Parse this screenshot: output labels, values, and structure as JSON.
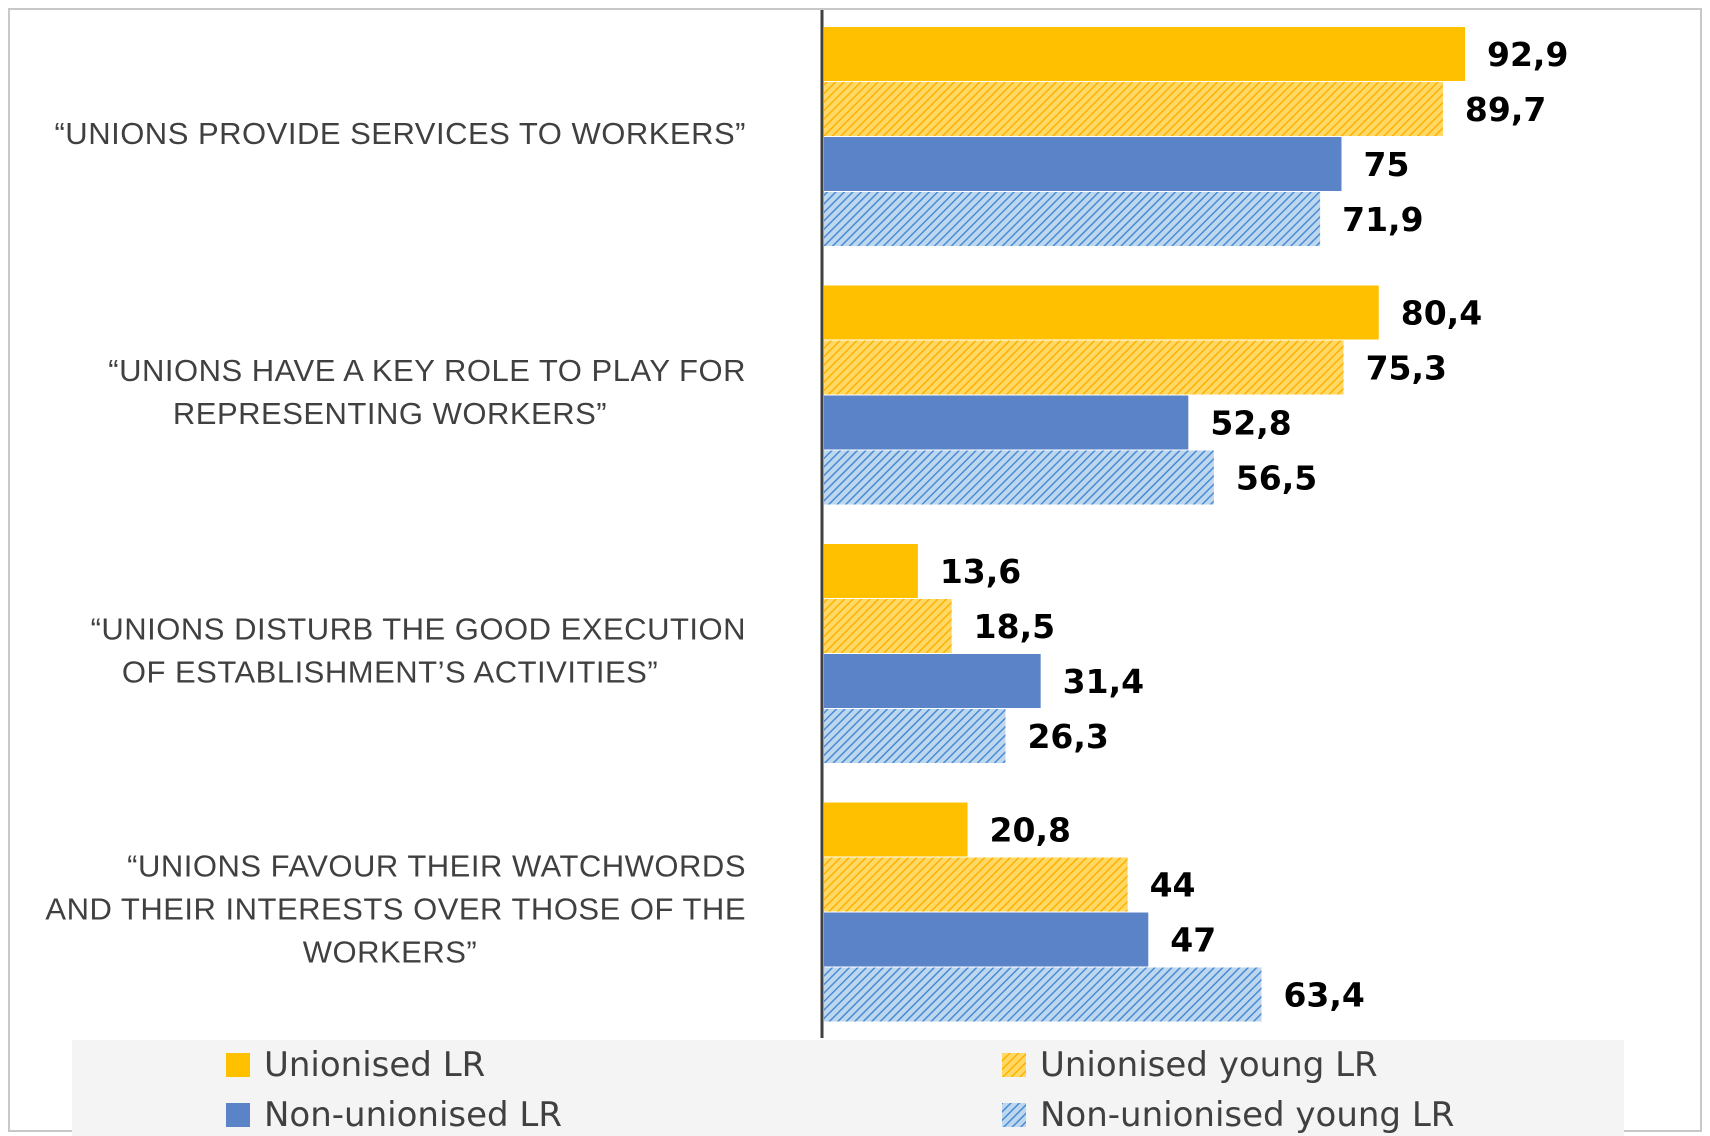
{
  "chart_data": {
    "type": "bar",
    "orientation": "horizontal",
    "categories": [
      "“UNIONS PROVIDE SERVICES TO WORKERS”",
      "“UNIONS HAVE A KEY ROLE TO PLAY FOR REPRESENTING WORKERS”",
      "“UNIONS DISTURB THE GOOD EXECUTION OF ESTABLISHMENT’S ACTIVITIES”",
      "“UNIONS FAVOUR THEIR WATCHWORDS AND THEIR INTERESTS OVER THOSE OF THE WORKERS”"
    ],
    "category_lines": [
      [
        "“UNIONS PROVIDE SERVICES TO WORKERS”"
      ],
      [
        "“UNIONS HAVE A KEY ROLE TO PLAY FOR",
        "REPRESENTING WORKERS”"
      ],
      [
        "“UNIONS DISTURB THE GOOD EXECUTION",
        "OF ESTABLISHMENT’S ACTIVITIES”"
      ],
      [
        "“UNIONS FAVOUR THEIR WATCHWORDS",
        "AND THEIR INTERESTS OVER THOSE OF THE",
        "WORKERS”"
      ]
    ],
    "series": [
      {
        "name": "Unionised LR",
        "values": [
          92.9,
          80.4,
          13.6,
          20.8
        ],
        "labels": [
          "92,9",
          "80,4",
          "13,6",
          "20,8"
        ],
        "color": "#FFC000",
        "pattern": "solid"
      },
      {
        "name": "Unionised young LR",
        "values": [
          89.7,
          75.3,
          18.5,
          44
        ],
        "labels": [
          "89,7",
          "75,3",
          "18,5",
          "44"
        ],
        "color": "#FFC000",
        "pattern": "hatched"
      },
      {
        "name": "Non-unionised LR",
        "values": [
          75,
          52.8,
          31.4,
          47
        ],
        "labels": [
          "75",
          "52,8",
          "31,4",
          "47"
        ],
        "color": "#5B84C8",
        "pattern": "solid"
      },
      {
        "name": "Non-unionised young LR",
        "values": [
          71.9,
          56.5,
          26.3,
          63.4
        ],
        "labels": [
          "71,9",
          "56,5",
          "26,3",
          "63,4"
        ],
        "color": "#5B9BD5",
        "pattern": "hatched"
      }
    ],
    "xlim": [
      0,
      100
    ],
    "grid": false,
    "legend_position": "bottom"
  }
}
